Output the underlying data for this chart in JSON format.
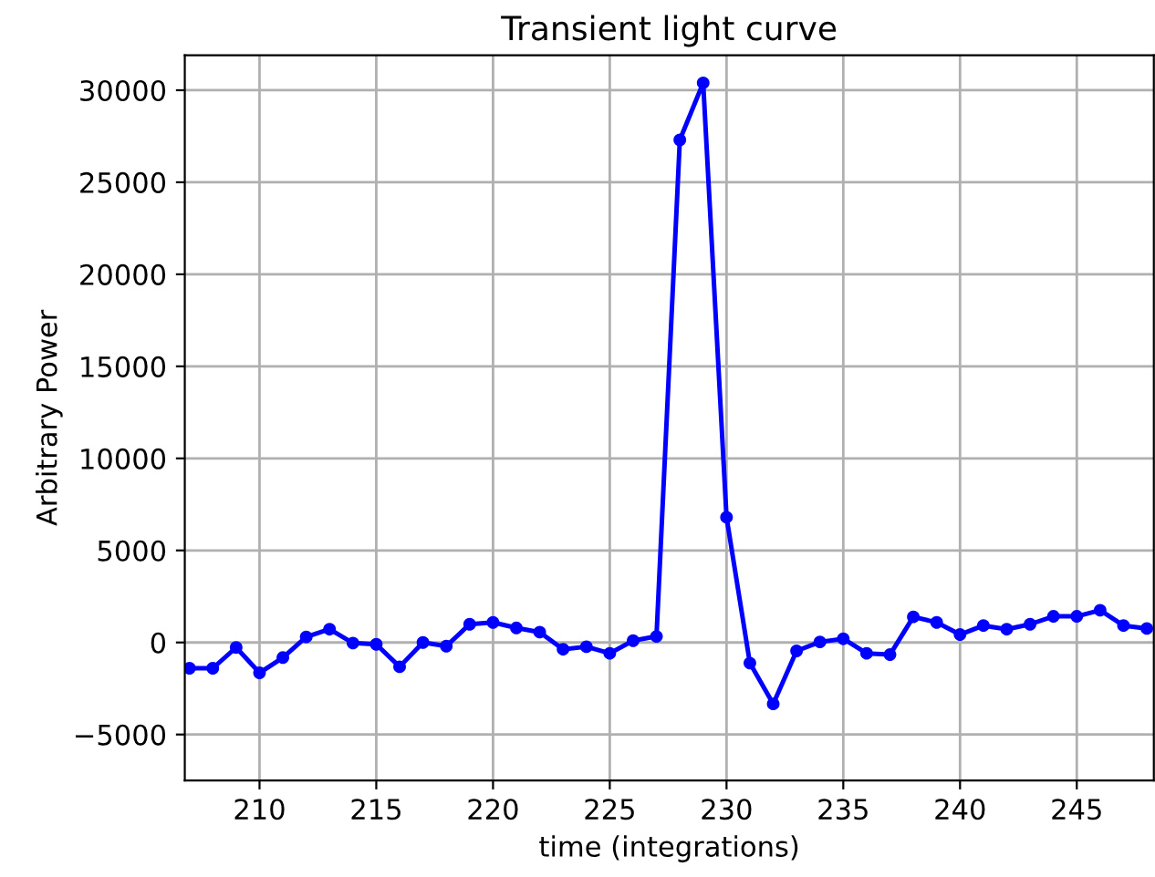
{
  "chart_data": {
    "type": "line",
    "title": "Transient light curve",
    "xlabel": "time (integrations)",
    "ylabel": "Arbitrary Power",
    "x": [
      207,
      208,
      209,
      210,
      211,
      212,
      213,
      214,
      215,
      216,
      217,
      218,
      219,
      220,
      221,
      222,
      223,
      224,
      225,
      226,
      227,
      228,
      229,
      230,
      231,
      232,
      233,
      234,
      235,
      236,
      237,
      238,
      239,
      240,
      241,
      242,
      243,
      244,
      245,
      246,
      247,
      248
    ],
    "series": [
      {
        "color": "#0000ff",
        "values": [
          -1400,
          -1400,
          -270,
          -1650,
          -820,
          300,
          720,
          -30,
          -100,
          -1320,
          0,
          -200,
          990,
          1090,
          790,
          560,
          -370,
          -230,
          -590,
          100,
          330,
          27300,
          30400,
          6800,
          -1120,
          -3340,
          -460,
          30,
          200,
          -590,
          -660,
          1390,
          1090,
          430,
          920,
          720,
          990,
          1420,
          1420,
          1750,
          920,
          760
        ]
      }
    ],
    "xlim": [
      206.8,
      248.3
    ],
    "xticks": [
      210,
      215,
      220,
      225,
      230,
      235,
      240,
      245
    ],
    "ylim": [
      -7500,
      31900
    ],
    "yticks": [
      {
        "value": -5000,
        "label": "−5000"
      },
      0,
      5000,
      10000,
      15000,
      20000,
      25000,
      30000
    ],
    "grid": true,
    "marker": "circle",
    "line_style": "solid"
  }
}
